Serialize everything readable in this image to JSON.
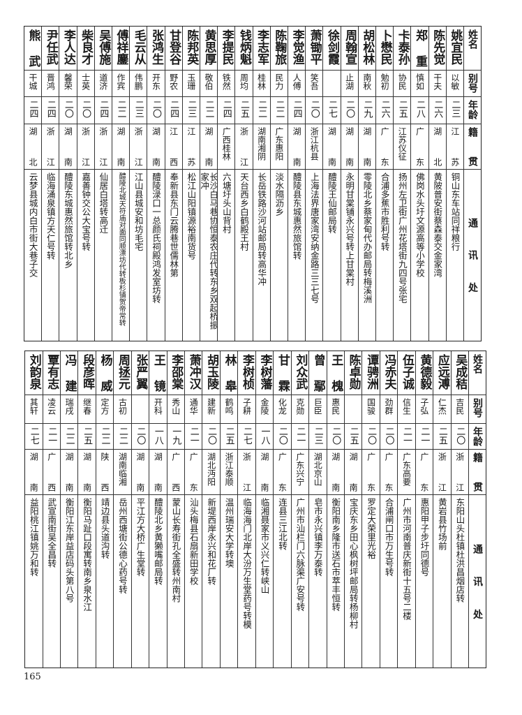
{
  "header": {
    "name": "姓名",
    "alias": "别号",
    "age": "年龄",
    "native": "籍贯",
    "address": "通讯处"
  },
  "top": [
    {
      "name": "姚宜民",
      "alias": "以敏",
      "age": "二三",
      "native": "江苏",
      "address": "铜山东车站同祥粮行"
    },
    {
      "name": "陈先觉",
      "alias": "干夫",
      "age": "二六",
      "native": "湖北",
      "address": "黄陂普安街蔡森泰交金家湾"
    },
    {
      "name": "郑重",
      "alias": "慎如",
      "age": "二八",
      "native": "广东",
      "address": "佛岗水头圩文源高等小学校"
    },
    {
      "name": "卡泰孙",
      "alias": "协民",
      "age": "二五",
      "native": "江苏仪征",
      "address": "扬州左卫街广州花塔街九四号张宅"
    },
    {
      "name": "卜懋民",
      "alias": "勉初",
      "age": "二六",
      "native": "广东",
      "address": "合浦多蕉市胜利号转"
    },
    {
      "name": "胡松林",
      "alias": "南秋",
      "age": "二九",
      "native": "湖南",
      "address": "零陵北乡蔡家甸代办邮局转梅溪洲"
    },
    {
      "name": "周翰宣",
      "alias": "止湖",
      "age": "二〇",
      "native": "湖南",
      "address": "永明甘棠铺永兴号转上甘棠村"
    },
    {
      "name": "徐剑霞",
      "alias": "",
      "age": "二七",
      "native": "湖南",
      "address": "醴陵王仙邮局转"
    },
    {
      "name": "萧锄平",
      "alias": "笑吾",
      "age": "二〇",
      "native": "浙江杭县",
      "address": "上海法界唐家湾安纳金路三三七号"
    },
    {
      "name": "李觉渔",
      "alias": "人傅",
      "age": "二四",
      "native": "湖南",
      "address": "醴陵县东城惠然旅馆转"
    },
    {
      "name": "陈鞠旅",
      "alias": "民力",
      "age": "二二",
      "native": "广东惠阳",
      "address": "淡水隔沥乡"
    },
    {
      "name": "李志军",
      "alias": "桂林",
      "age": "二二",
      "native": "湖南湘阴",
      "address": "长岳铁路沙河站邮局转高华冲"
    },
    {
      "name": "钱炳魁",
      "alias": "周均",
      "age": "二五",
      "native": "浙江",
      "address": "天台西乡白鹤殿王村"
    },
    {
      "name": "李提民",
      "alias": "铁然",
      "age": "二四",
      "native": "广西桂林",
      "address": "六塘圩头山背村"
    },
    {
      "name": "黄思厚",
      "alias": "敬伯",
      "age": "二二",
      "native": "湖南",
      "address": "长沙白马巷协恒泰农庄代转东乡双起桥振家冲"
    },
    {
      "name": "陈邦英",
      "alias": "玉珊",
      "age": "二三",
      "native": "江苏",
      "address": "松江山阳镇源裕南货号"
    },
    {
      "name": "甘登谷",
      "alias": "野农",
      "age": "二四",
      "native": "江西",
      "address": "奉新县东门云腾巷世儒林第"
    },
    {
      "name": "张鸿生",
      "alias": "开东",
      "age": "二〇",
      "native": "湖南",
      "address": "醴陵渌口一总颜氏祠殿鸿发室坊转"
    },
    {
      "name": "毛云从",
      "alias": "伟鹏",
      "age": "二三",
      "native": "浙江",
      "address": "江山县城安和坊毛宅"
    },
    {
      "name": "傅祥鏖",
      "alias": "作宾",
      "age": "二二",
      "native": "湖南",
      "address": "醴陵北城天符庙对面同顺漂坊代转板杉铺贺帝常转"
    },
    {
      "name": "吴傅施",
      "alias": "道济",
      "age": "二四",
      "native": "浙江",
      "address": "仙居白塔转高迁"
    },
    {
      "name": "柴良才",
      "alias": "士英",
      "age": "二〇",
      "native": "浙江",
      "address": "嘉善钟交公大宝号转"
    },
    {
      "name": "李人达",
      "alias": "馨荣",
      "age": "二〇",
      "native": "湖南",
      "address": "醴陵东城惠然旅馆转北乡"
    },
    {
      "name": "尹任武",
      "alias": "晋鸿",
      "age": "二四",
      "native": "浙江",
      "address": "临海涌泉镇方天仁号转"
    },
    {
      "name": "熊武",
      "alias": "干城",
      "age": "二四",
      "native": "湖北",
      "address": "云梦县城内白市街大巷子交"
    }
  ],
  "bottom": [
    {
      "name": "吴成秸",
      "alias": "吉民",
      "age": "二〇",
      "native": "浙江",
      "address": "东阳山头杜镇杜洪昌烟店转"
    },
    {
      "name": "应远溥",
      "alias": "仁杰",
      "age": "二五",
      "native": "浙江",
      "address": "黄岩县竹场前"
    },
    {
      "name": "黄德毅",
      "alias": "子弘",
      "age": "二一",
      "native": "广东",
      "address": "惠阳甲子步圩同德号"
    },
    {
      "name": "伍子诚",
      "alias": "信生",
      "age": "二一",
      "native": "广东高要",
      "address": "广州市河南普庆新街十五号二楼"
    },
    {
      "name": "冯赤夫",
      "alias": "劲群",
      "age": "二〇",
      "native": "广东",
      "address": "合浦闸口市万生号转"
    },
    {
      "name": "谭骋洲",
      "alias": "国骏",
      "age": "二〇",
      "native": "广东",
      "address": "罗定大荣里光裕"
    },
    {
      "name": "陈卓勋",
      "alias": "",
      "age": "二五",
      "native": "湖南",
      "address": "宝庆东乡田心枫树坪邮局转杨柳村"
    },
    {
      "name": "王槐",
      "alias": "惠民",
      "age": "二〇",
      "native": "湖南",
      "address": "衡阳南乡隆市送石市萃丰恒转"
    },
    {
      "name": "曾鄢",
      "alias": "巨臣",
      "age": "二三",
      "native": "湖北京山",
      "address": "皂市永兴镇李万泰转"
    },
    {
      "name": "刘众武",
      "alias": "克勋",
      "age": "二一",
      "native": "广东兴宁",
      "address": "广州市汕栏门六脉渠广安号转"
    },
    {
      "name": "甘霖",
      "alias": "化龙",
      "age": "二〇",
      "native": "广东",
      "address": "连县三江北转"
    },
    {
      "name": "李树藩",
      "alias": "金陵",
      "age": "一八",
      "native": "湖南",
      "address": "临湘聂家市义兴仁转峡山"
    },
    {
      "name": "李树桢",
      "alias": "子耕",
      "age": "二七",
      "native": "浙江",
      "address": "临海海门北岸大汾万生堂药号转模"
    },
    {
      "name": "林皋",
      "alias": "鹤鸣",
      "age": "二五",
      "native": "浙江泰顺",
      "address": "温州瑞安大学转墺"
    },
    {
      "name": "胡玉陵",
      "alias": "建新",
      "age": "二〇",
      "native": "湖北沔阳",
      "address": "新堤西岸永兴和花厂转"
    },
    {
      "name": "萧冲汉",
      "alias": "通华",
      "age": "二一",
      "native": "广东",
      "address": "汕头梅县石扇新田学校"
    },
    {
      "name": "李邵棠",
      "alias": "秀山",
      "age": "一九",
      "native": "广西",
      "address": "蒙山长寿街孔全盛转州南村"
    },
    {
      "name": "王镜",
      "alias": "开科",
      "age": "一八",
      "native": "湖南",
      "address": "醴陵北乡黄獭嘴邮局转"
    },
    {
      "name": "张严翼",
      "alias": "",
      "age": "二〇",
      "native": "湖南",
      "address": "平江方大桥广生堂转"
    },
    {
      "name": "周拯元",
      "alias": "古初",
      "age": "二二",
      "native": "湖南临湘",
      "address": "岳州西塘街公德心药号转"
    },
    {
      "name": "杨威",
      "alias": "定方",
      "age": "二二",
      "native": "陕西",
      "address": "靖边县头道沟转"
    },
    {
      "name": "段彦晖",
      "alias": "继春",
      "age": "二五",
      "native": "湖南",
      "address": "衡阳马趾口段寓转南乡泉水江"
    },
    {
      "name": "冯建",
      "alias": "瑞戌",
      "age": "二二",
      "native": "湖南",
      "address": "衡阳江东岸益店码头第八号"
    },
    {
      "name": "覃有志",
      "alias": "凌云",
      "age": "二一",
      "native": "广西",
      "address": "武宣南街吴全昌转"
    },
    {
      "name": "刘韵泉",
      "alias": "其轩",
      "age": "二七",
      "native": "湖南",
      "address": "益阳桃江镇姚万和转"
    }
  ],
  "page_number": "165"
}
